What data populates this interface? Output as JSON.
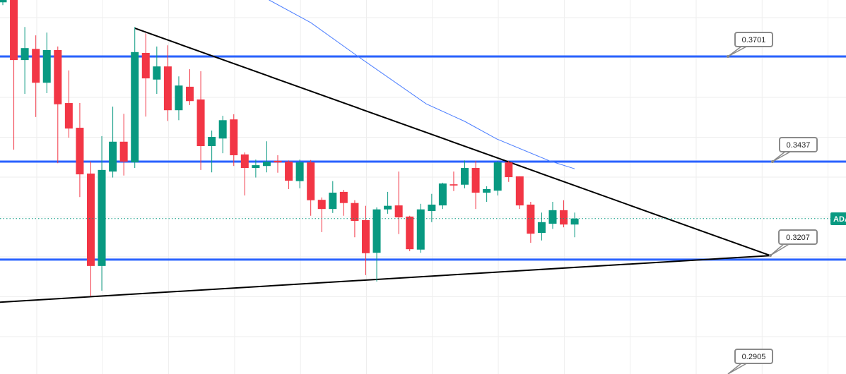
{
  "chart_data": {
    "type": "candlestick",
    "title": "",
    "xlabel": "",
    "ylabel": "",
    "ylim": [
      0.2905,
      0.3843
    ],
    "grid": true,
    "colors": {
      "up": "#089981",
      "down": "#f23645",
      "level_line": "#2962ff",
      "moving_average": "#4a7dff",
      "trendline": "#000000",
      "last_price": "#089981"
    },
    "candles": [
      {
        "o": 0.3837,
        "h": 0.3852,
        "l": 0.383,
        "c": 0.3843
      },
      {
        "o": 0.3861,
        "h": 0.3878,
        "l": 0.3467,
        "c": 0.3692
      },
      {
        "o": 0.3692,
        "h": 0.3775,
        "l": 0.3607,
        "c": 0.3722
      },
      {
        "o": 0.372,
        "h": 0.3754,
        "l": 0.3549,
        "c": 0.3635
      },
      {
        "o": 0.3635,
        "h": 0.3761,
        "l": 0.3609,
        "c": 0.3717
      },
      {
        "o": 0.3717,
        "h": 0.3726,
        "l": 0.3433,
        "c": 0.3581
      },
      {
        "o": 0.3584,
        "h": 0.3666,
        "l": 0.3497,
        "c": 0.352
      },
      {
        "o": 0.3522,
        "h": 0.3584,
        "l": 0.3348,
        "c": 0.3405
      },
      {
        "o": 0.3407,
        "h": 0.3437,
        "l": 0.3099,
        "c": 0.3175
      },
      {
        "o": 0.3175,
        "h": 0.3501,
        "l": 0.3113,
        "c": 0.3416
      },
      {
        "o": 0.3412,
        "h": 0.3575,
        "l": 0.3397,
        "c": 0.3487
      },
      {
        "o": 0.3487,
        "h": 0.3557,
        "l": 0.3402,
        "c": 0.3437
      },
      {
        "o": 0.3435,
        "h": 0.3775,
        "l": 0.3421,
        "c": 0.3712
      },
      {
        "o": 0.371,
        "h": 0.3759,
        "l": 0.355,
        "c": 0.3646
      },
      {
        "o": 0.3643,
        "h": 0.3726,
        "l": 0.3607,
        "c": 0.3676
      },
      {
        "o": 0.3676,
        "h": 0.3729,
        "l": 0.3539,
        "c": 0.3566
      },
      {
        "o": 0.3566,
        "h": 0.3651,
        "l": 0.3541,
        "c": 0.3628
      },
      {
        "o": 0.3625,
        "h": 0.3669,
        "l": 0.3579,
        "c": 0.3589
      },
      {
        "o": 0.3593,
        "h": 0.3664,
        "l": 0.3416,
        "c": 0.3476
      },
      {
        "o": 0.3476,
        "h": 0.3515,
        "l": 0.341,
        "c": 0.3499
      },
      {
        "o": 0.3495,
        "h": 0.3552,
        "l": 0.3458,
        "c": 0.3541
      },
      {
        "o": 0.3543,
        "h": 0.3556,
        "l": 0.3426,
        "c": 0.3453
      },
      {
        "o": 0.3455,
        "h": 0.346,
        "l": 0.3352,
        "c": 0.3421
      },
      {
        "o": 0.3421,
        "h": 0.3442,
        "l": 0.3397,
        "c": 0.3428
      },
      {
        "o": 0.3426,
        "h": 0.3488,
        "l": 0.341,
        "c": 0.3437
      },
      {
        "o": 0.3439,
        "h": 0.3453,
        "l": 0.3409,
        "c": 0.3435
      },
      {
        "o": 0.3437,
        "h": 0.344,
        "l": 0.3368,
        "c": 0.3389
      },
      {
        "o": 0.3388,
        "h": 0.3442,
        "l": 0.337,
        "c": 0.3435
      },
      {
        "o": 0.3435,
        "h": 0.3441,
        "l": 0.3301,
        "c": 0.334
      },
      {
        "o": 0.3341,
        "h": 0.3347,
        "l": 0.326,
        "c": 0.3318
      },
      {
        "o": 0.3318,
        "h": 0.3388,
        "l": 0.3308,
        "c": 0.3359
      },
      {
        "o": 0.3361,
        "h": 0.3366,
        "l": 0.3301,
        "c": 0.3333
      },
      {
        "o": 0.3333,
        "h": 0.334,
        "l": 0.3247,
        "c": 0.3288
      },
      {
        "o": 0.329,
        "h": 0.3326,
        "l": 0.3152,
        "c": 0.3207
      },
      {
        "o": 0.3208,
        "h": 0.3322,
        "l": 0.3136,
        "c": 0.3317
      },
      {
        "o": 0.3317,
        "h": 0.3361,
        "l": 0.3306,
        "c": 0.3326
      },
      {
        "o": 0.3327,
        "h": 0.3412,
        "l": 0.3255,
        "c": 0.3297
      },
      {
        "o": 0.3299,
        "h": 0.3301,
        "l": 0.3212,
        "c": 0.3217
      },
      {
        "o": 0.3216,
        "h": 0.3331,
        "l": 0.3208,
        "c": 0.3317
      },
      {
        "o": 0.3313,
        "h": 0.3356,
        "l": 0.3285,
        "c": 0.3329
      },
      {
        "o": 0.3327,
        "h": 0.3384,
        "l": 0.3318,
        "c": 0.3382
      },
      {
        "o": 0.338,
        "h": 0.3412,
        "l": 0.3363,
        "c": 0.3377
      },
      {
        "o": 0.3379,
        "h": 0.344,
        "l": 0.337,
        "c": 0.3421
      },
      {
        "o": 0.3421,
        "h": 0.3439,
        "l": 0.3318,
        "c": 0.3359
      },
      {
        "o": 0.3359,
        "h": 0.3375,
        "l": 0.3336,
        "c": 0.3368
      },
      {
        "o": 0.3364,
        "h": 0.3439,
        "l": 0.3352,
        "c": 0.3435
      },
      {
        "o": 0.3435,
        "h": 0.3439,
        "l": 0.3386,
        "c": 0.3398
      },
      {
        "o": 0.34,
        "h": 0.34,
        "l": 0.3318,
        "c": 0.3327
      },
      {
        "o": 0.3329,
        "h": 0.3336,
        "l": 0.3233,
        "c": 0.3256
      },
      {
        "o": 0.3258,
        "h": 0.3309,
        "l": 0.3239,
        "c": 0.3285
      },
      {
        "o": 0.3281,
        "h": 0.3336,
        "l": 0.3268,
        "c": 0.3315
      },
      {
        "o": 0.3315,
        "h": 0.334,
        "l": 0.3272,
        "c": 0.3279
      },
      {
        "o": 0.3279,
        "h": 0.3309,
        "l": 0.3247,
        "c": 0.3294
      }
    ],
    "moving_average": [
      {
        "bar": 24.2,
        "p": 0.3843
      },
      {
        "bar": 28.0,
        "p": 0.3786
      },
      {
        "bar": 32.3,
        "p": 0.3701
      },
      {
        "bar": 38.5,
        "p": 0.3582
      },
      {
        "bar": 42.0,
        "p": 0.3538
      },
      {
        "bar": 44.9,
        "p": 0.3494
      },
      {
        "bar": 49.7,
        "p": 0.3439
      },
      {
        "bar": 52.0,
        "p": 0.3419
      }
    ],
    "horizontal_levels": [
      0.3701,
      0.3437,
      0.3191
    ],
    "trendlines": [
      {
        "from": {
          "bar": 12.0,
          "p": 0.3772
        },
        "to": {
          "bar": 69.8,
          "p": 0.3201
        }
      },
      {
        "from": {
          "bar": -0.26,
          "p": 0.3084
        },
        "to": {
          "bar": 69.8,
          "p": 0.3201
        }
      }
    ],
    "last_price": 0.3294,
    "symbol_tag": "ADA",
    "price_labels": [
      "0.3701",
      "0.3437",
      "0.3207",
      "0.2905"
    ]
  }
}
